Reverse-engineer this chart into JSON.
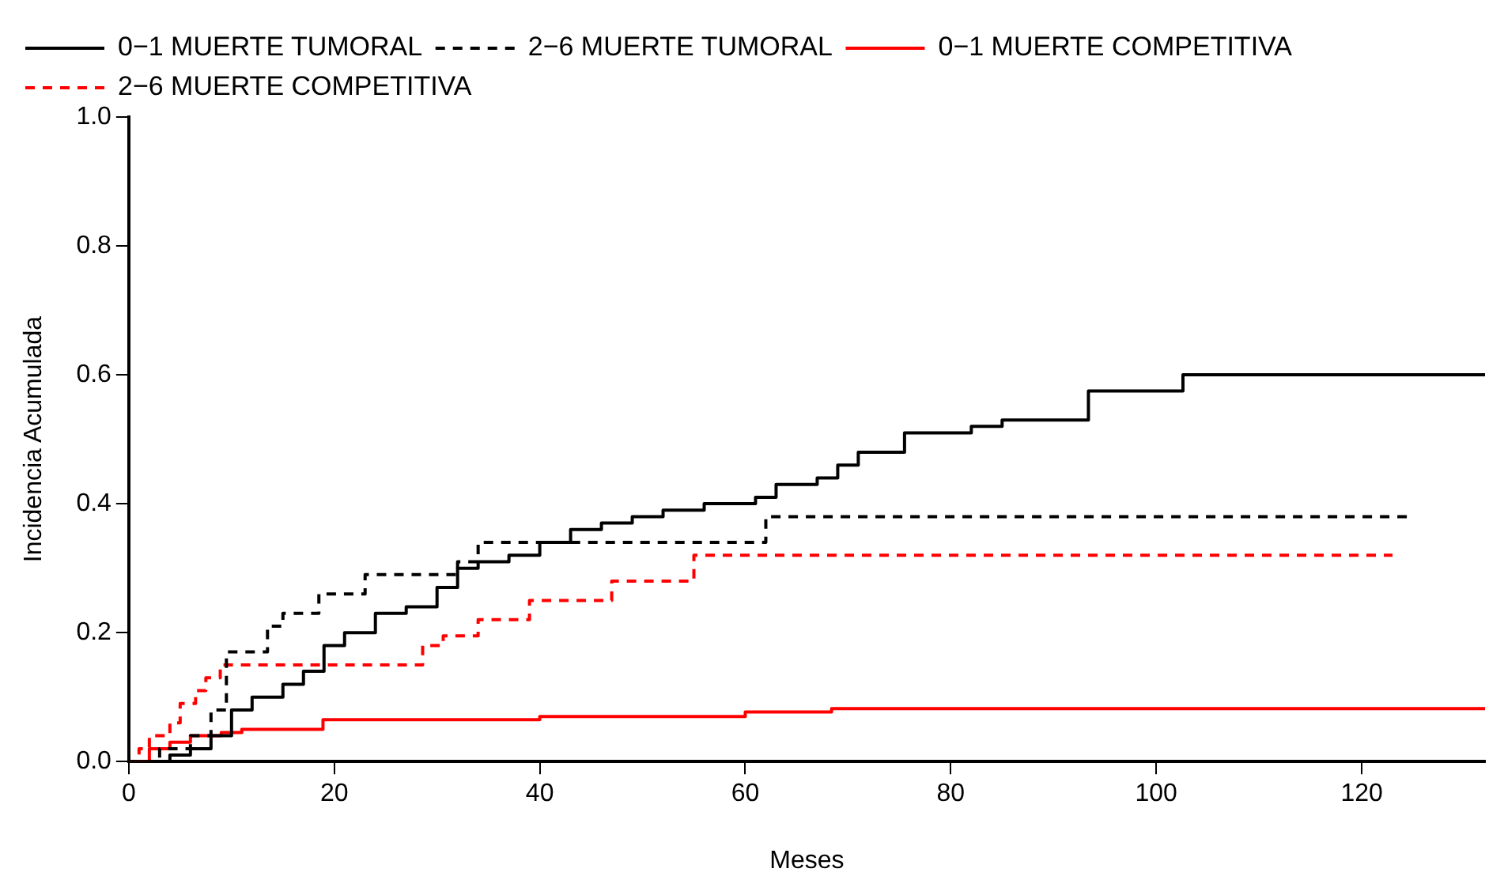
{
  "chart_data": {
    "type": "step",
    "xlabel": "Meses",
    "ylabel": "Incidencia Acumulada",
    "xlim": [
      0,
      132
    ],
    "xticks": [
      0,
      20,
      40,
      60,
      80,
      100,
      120
    ],
    "ylim": [
      0,
      1
    ],
    "yticks": [
      {
        "value": 0,
        "label": "0.0"
      },
      {
        "value": 0.2,
        "label": "0.2"
      },
      {
        "value": 0.4,
        "label": "0.4"
      },
      {
        "value": 0.6,
        "label": "0.6"
      },
      {
        "value": 0.8,
        "label": "0.8"
      },
      {
        "value": 1,
        "label": "1.0"
      }
    ],
    "grid": false,
    "legend": "top left",
    "marker": "none",
    "series": [
      {
        "name": "0−1 MUERTE TUMORAL",
        "color": "#000000",
        "line_style": "solid",
        "x": [
          0,
          4,
          6,
          8,
          10,
          12,
          15,
          17,
          19,
          21,
          24,
          27,
          30,
          32,
          34,
          37,
          40,
          43,
          46,
          49,
          52,
          56,
          61,
          63,
          67,
          69,
          71,
          75.5,
          82,
          85,
          93.4,
          102.6,
          132
        ],
        "values": [
          0,
          0.01,
          0.02,
          0.04,
          0.08,
          0.1,
          0.12,
          0.14,
          0.18,
          0.2,
          0.23,
          0.24,
          0.27,
          0.3,
          0.31,
          0.32,
          0.34,
          0.36,
          0.37,
          0.38,
          0.39,
          0.4,
          0.41,
          0.43,
          0.44,
          0.46,
          0.48,
          0.51,
          0.52,
          0.53,
          0.575,
          0.6,
          0.6
        ]
      },
      {
        "name": "2−6 MUERTE TUMORAL",
        "color": "#000000",
        "line_style": "dashed",
        "x": [
          0,
          3,
          6,
          8,
          9.5,
          13.5,
          15,
          18.5,
          23,
          32,
          34,
          62,
          124.5
        ],
        "values": [
          0,
          0.02,
          0.04,
          0.08,
          0.17,
          0.21,
          0.23,
          0.26,
          0.29,
          0.31,
          0.34,
          0.38,
          0.38
        ]
      },
      {
        "name": "0−1 MUERTE COMPETITIVA",
        "color": "#ff0000",
        "line_style": "solid",
        "x": [
          0,
          2,
          4,
          6,
          9,
          11,
          18.9,
          40,
          60,
          68.4,
          132
        ],
        "values": [
          0,
          0.02,
          0.03,
          0.04,
          0.045,
          0.05,
          0.065,
          0.07,
          0.077,
          0.082,
          0.082
        ]
      },
      {
        "name": "2−6 MUERTE COMPETITIVA",
        "color": "#ff0000",
        "line_style": "dashed",
        "x": [
          0,
          1,
          2,
          4,
          5,
          6.5,
          7.5,
          8.9,
          28.6,
          30.6,
          34,
          39,
          47,
          55,
          123
        ],
        "values": [
          0,
          0.02,
          0.04,
          0.06,
          0.09,
          0.11,
          0.13,
          0.15,
          0.18,
          0.195,
          0.22,
          0.25,
          0.28,
          0.32,
          0.32
        ]
      }
    ]
  }
}
